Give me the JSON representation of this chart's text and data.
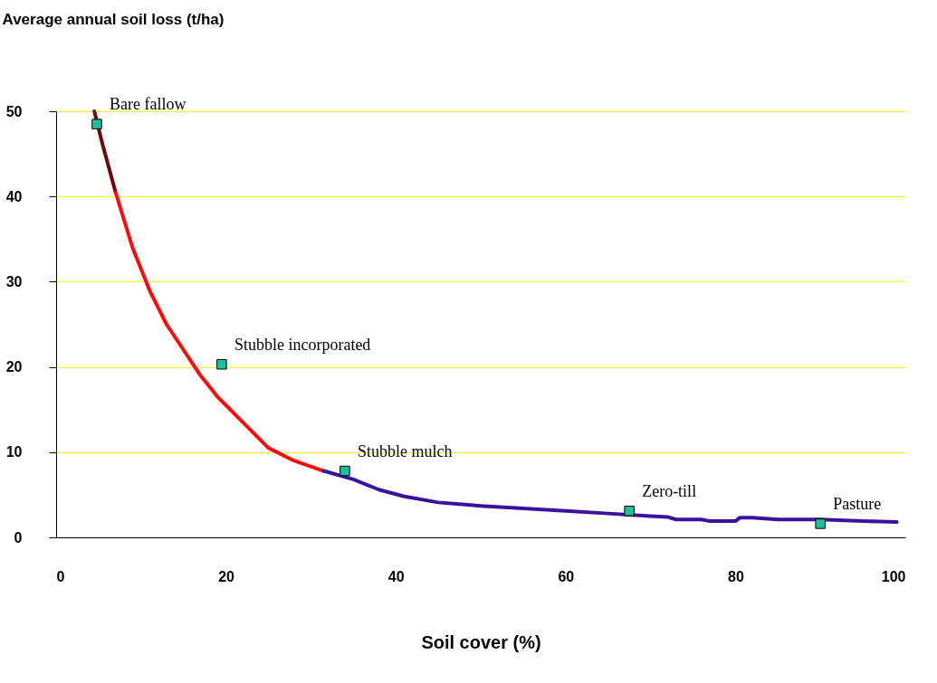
{
  "chart_data": {
    "type": "line",
    "ylabel": "Average annual soil loss (t/ha)",
    "xlabel": "Soil cover (%)",
    "xlim": [
      0,
      100
    ],
    "xticks": [
      0,
      20,
      40,
      60,
      80,
      100
    ],
    "ylim": [
      0,
      50
    ],
    "yticks": [
      0,
      10,
      20,
      30,
      40,
      50
    ],
    "grid": "y",
    "marker": "none",
    "line_style": "solid",
    "series": [
      {
        "color": "#6b0a0a",
        "x": [
          4.5,
          5.5,
          7
        ],
        "values": [
          50,
          46,
          40.5
        ]
      },
      {
        "color": "#ff0a0a",
        "x": [
          7,
          9,
          11,
          13,
          15,
          17,
          19,
          22,
          25,
          28,
          31.5
        ],
        "values": [
          40.5,
          34,
          29,
          25,
          22,
          19,
          16.5,
          13.5,
          10.5,
          9,
          7.8
        ]
      },
      {
        "color": "#3a129e",
        "x": [
          31.5,
          35,
          38,
          41,
          45,
          50,
          55,
          60,
          65,
          70,
          72,
          73,
          76,
          77,
          80,
          80.5,
          82,
          85,
          90,
          95,
          99
        ],
        "values": [
          7.8,
          6.8,
          5.6,
          4.8,
          4.1,
          3.7,
          3.4,
          3.1,
          2.8,
          2.5,
          2.4,
          2.1,
          2.1,
          1.9,
          1.9,
          2.3,
          2.3,
          2.1,
          2.1,
          1.9,
          1.8
        ]
      },
      {
        "type": "scatter",
        "marker": "square",
        "color": "#1fbf9a",
        "x": [
          4.8,
          19.5,
          34,
          67.5,
          90
        ],
        "values": [
          48.5,
          20.3,
          7.8,
          3.1,
          1.6
        ]
      }
    ],
    "annotations": [
      {
        "text": "Bare fallow",
        "x": 4.8,
        "y": 48.5
      },
      {
        "text": "Stubble incorporated",
        "x": 19.5,
        "y": 20.3
      },
      {
        "text": "Stubble mulch",
        "x": 34,
        "y": 7.8
      },
      {
        "text": "Zero-till",
        "x": 67.5,
        "y": 3.1
      },
      {
        "text": "Pasture",
        "x": 90,
        "y": 1.6
      }
    ]
  }
}
